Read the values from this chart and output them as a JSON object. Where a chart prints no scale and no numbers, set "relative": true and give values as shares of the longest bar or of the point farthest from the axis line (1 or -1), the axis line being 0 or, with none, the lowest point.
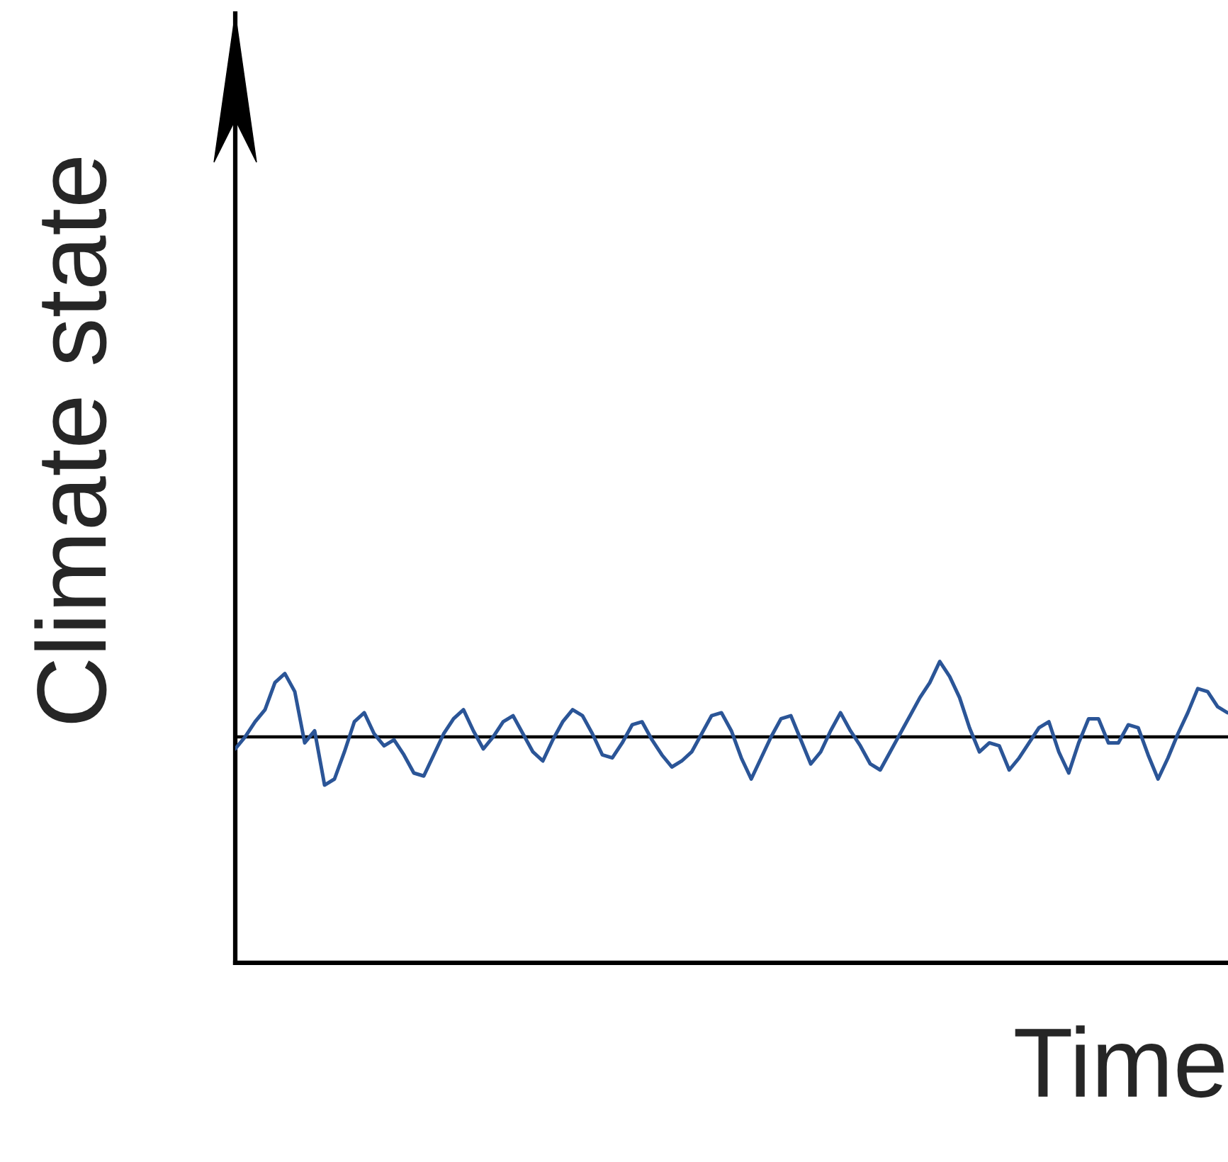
{
  "chart_data": {
    "type": "line",
    "relative": true,
    "xlabel": "Time",
    "ylabel": "Climate state",
    "categories": [
      null,
      null,
      null,
      null,
      null,
      null,
      null,
      null,
      null,
      null,
      null,
      null,
      null,
      null,
      null,
      null,
      null,
      null,
      null,
      null,
      null,
      null,
      null,
      null,
      null,
      null,
      null,
      null,
      null,
      null,
      null,
      null,
      null,
      null,
      null,
      null,
      null,
      null,
      null,
      null,
      null,
      null,
      null,
      null,
      null,
      null,
      null,
      null,
      null,
      null,
      null,
      null,
      null,
      null,
      null,
      null,
      null,
      null,
      null,
      null,
      null,
      null,
      null,
      null,
      null,
      null,
      null,
      null,
      null,
      null,
      null,
      null,
      null,
      null,
      null,
      null,
      null,
      null,
      null,
      null,
      null,
      null,
      null,
      null,
      null,
      null,
      null,
      null,
      null,
      null,
      null,
      null,
      null,
      null,
      null,
      null,
      null,
      null,
      null,
      null,
      null
    ],
    "series": [
      {
        "color": "#2b5597",
        "values": [
          0.71,
          0.75,
          0.8,
          0.84,
          0.93,
          0.96,
          0.9,
          0.73,
          0.77,
          0.59,
          0.61,
          0.7,
          0.8,
          0.83,
          0.76,
          0.72,
          0.74,
          0.69,
          0.63,
          0.62,
          0.69,
          0.76,
          0.81,
          0.84,
          0.77,
          0.71,
          0.75,
          0.8,
          0.82,
          0.76,
          0.7,
          0.67,
          0.74,
          0.8,
          0.84,
          0.82,
          0.76,
          0.69,
          0.68,
          0.73,
          0.79,
          0.8,
          0.74,
          0.69,
          0.65,
          0.67,
          0.7,
          0.76,
          0.82,
          0.83,
          0.77,
          0.68,
          0.61,
          0.68,
          0.75,
          0.81,
          0.82,
          0.74,
          0.66,
          0.7,
          0.77,
          0.83,
          0.77,
          0.72,
          0.66,
          0.64,
          0.7,
          0.76,
          0.82,
          0.88,
          0.93,
          1.0,
          0.95,
          0.88,
          0.78,
          0.7,
          0.73,
          0.72,
          0.64,
          0.68,
          0.73,
          0.78,
          0.8,
          0.7,
          0.63,
          0.73,
          0.81,
          0.81,
          0.73,
          0.73,
          0.79,
          0.78,
          0.69,
          0.61,
          0.68,
          0.76,
          0.83,
          0.91,
          0.9,
          0.85,
          0.83
        ]
      }
    ],
    "ref_lines": [
      {
        "axis": "y",
        "value": 0.75,
        "color": "#000000",
        "line_style": "solid"
      }
    ],
    "grid": false,
    "legend": false
  }
}
